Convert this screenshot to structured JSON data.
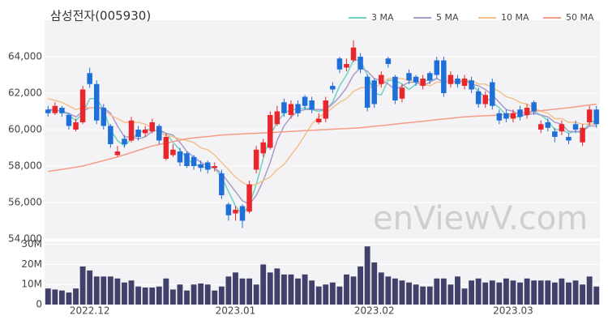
{
  "chart_data": [
    {
      "type": "candlestick",
      "title": "삼성전자(005930)",
      "watermark": "enViewV.com",
      "up_color": "#e8262b",
      "down_color": "#1f6fd8",
      "open": [
        61100,
        60900,
        61200,
        60800,
        60000,
        60400,
        63100,
        62500,
        61200,
        60200,
        58600,
        59500,
        59400,
        60000,
        59800,
        59900,
        60200,
        58400,
        58600,
        58800,
        58700,
        58500,
        58100,
        58200,
        57900,
        57600,
        55900,
        55400,
        55800,
        55500,
        57800,
        58700,
        59000,
        60300,
        61500,
        60800,
        61400,
        61800,
        61600,
        60400,
        60600,
        62400,
        63900,
        63400,
        63800,
        64000,
        62900,
        62700,
        62500,
        63900,
        62900,
        61700,
        63100,
        62900,
        62400,
        63100,
        63800,
        63800,
        62500,
        62800,
        62400,
        62700,
        62100,
        61400,
        62600,
        60900,
        60900,
        60600,
        61100,
        60800,
        61500,
        60000,
        60400,
        59900,
        59900,
        59600,
        60300,
        59300,
        60400,
        61100
      ],
      "high": [
        61300,
        61500,
        61300,
        60900,
        60600,
        62400,
        63400,
        62700,
        61400,
        60300,
        59100,
        59700,
        60700,
        60200,
        60200,
        60600,
        60300,
        59800,
        59200,
        59000,
        58800,
        58600,
        58300,
        58300,
        58200,
        57800,
        56000,
        55800,
        55900,
        57200,
        59100,
        59500,
        61000,
        61300,
        61700,
        61600,
        61600,
        61900,
        61800,
        60900,
        61800,
        62600,
        64000,
        63900,
        64900,
        64200,
        63000,
        62800,
        63200,
        64000,
        63000,
        62500,
        63300,
        63000,
        63000,
        63200,
        64000,
        64000,
        63200,
        63000,
        63000,
        62900,
        62300,
        62100,
        62800,
        61100,
        61100,
        61100,
        61300,
        61400,
        61600,
        60500,
        60600,
        60100,
        60500,
        59800,
        60500,
        60300,
        61300,
        61300
      ],
      "low": [
        60700,
        60800,
        60700,
        60000,
        59900,
        60300,
        62300,
        60300,
        60000,
        59000,
        58500,
        59000,
        59300,
        59400,
        59600,
        59800,
        59200,
        58300,
        58500,
        58000,
        57900,
        57800,
        57700,
        57600,
        57700,
        56200,
        55000,
        55000,
        54600,
        55400,
        57600,
        58500,
        58900,
        60200,
        60700,
        60600,
        60700,
        61100,
        60900,
        60300,
        60400,
        62000,
        63100,
        63200,
        63700,
        63100,
        61000,
        61200,
        62300,
        63400,
        61400,
        61500,
        62500,
        62400,
        62200,
        62500,
        62800,
        61800,
        62300,
        62300,
        62200,
        62000,
        61200,
        61200,
        61100,
        60300,
        60400,
        60400,
        60500,
        60600,
        60800,
        59800,
        59900,
        59300,
        59700,
        59200,
        59800,
        59100,
        60200,
        60100
      ],
      "close": [
        60900,
        61300,
        60900,
        60200,
        60400,
        62200,
        62500,
        60500,
        60200,
        59200,
        58800,
        59200,
        60500,
        59600,
        60000,
        60400,
        59400,
        59600,
        58900,
        58200,
        58000,
        58000,
        57900,
        57800,
        58000,
        56400,
        55300,
        55600,
        55000,
        57000,
        58900,
        59300,
        60800,
        61000,
        60900,
        61400,
        60900,
        61300,
        61100,
        60600,
        61600,
        62200,
        63300,
        63600,
        64500,
        63300,
        61200,
        61400,
        63000,
        63600,
        61600,
        62300,
        62700,
        62600,
        62800,
        62700,
        63000,
        62000,
        63000,
        62500,
        62800,
        62200,
        61400,
        61900,
        61300,
        60500,
        60600,
        60900,
        60700,
        61200,
        61000,
        60300,
        60100,
        59600,
        60300,
        59400,
        60000,
        60100,
        61100,
        60300
      ],
      "series": [
        {
          "name": "3 MA",
          "color": "#6fd1c1",
          "values": [
            61000,
            61100,
            61000,
            60800,
            60500,
            60900,
            61700,
            61700,
            61100,
            60000,
            59400,
            59100,
            59500,
            59800,
            60000,
            60000,
            59900,
            59800,
            59300,
            58900,
            58400,
            58100,
            58000,
            57900,
            57900,
            57400,
            56600,
            55800,
            55300,
            55900,
            57000,
            58400,
            59700,
            60400,
            60900,
            61100,
            61100,
            61200,
            61100,
            61000,
            61100,
            61500,
            62400,
            63000,
            63800,
            63800,
            63000,
            62000,
            61900,
            62700,
            62700,
            62500,
            62200,
            62500,
            62700,
            62700,
            62800,
            62600,
            62700,
            62500,
            62800,
            62500,
            62100,
            61800,
            61500,
            61200,
            60800,
            60700,
            60700,
            60900,
            61000,
            60800,
            60500,
            60000,
            60000,
            59800,
            59900,
            59800,
            60400,
            60500
          ]
        },
        {
          "name": "5 MA",
          "color": "#a99cca",
          "values": [
            61100,
            61100,
            61000,
            60900,
            60700,
            61000,
            61200,
            61200,
            61200,
            60900,
            60200,
            59600,
            59600,
            59500,
            59600,
            59900,
            60000,
            59800,
            59700,
            59300,
            58800,
            58500,
            58200,
            58000,
            57900,
            57600,
            57100,
            56600,
            56100,
            55900,
            56400,
            57200,
            58200,
            59400,
            60200,
            60700,
            61000,
            61100,
            61100,
            61100,
            61100,
            61400,
            61800,
            62300,
            63000,
            63400,
            63200,
            62800,
            62700,
            62500,
            62200,
            62400,
            62600,
            62600,
            62400,
            62600,
            62800,
            62600,
            62700,
            62600,
            62700,
            62500,
            62400,
            62200,
            61900,
            61500,
            61100,
            61000,
            60800,
            60800,
            60900,
            60800,
            60700,
            60400,
            60300,
            59900,
            59900,
            59900,
            60200,
            60200
          ]
        },
        {
          "name": "10 MA",
          "color": "#f2c18c",
          "values": [
            61700,
            61600,
            61500,
            61300,
            61100,
            61200,
            61200,
            61200,
            61100,
            60800,
            60600,
            60400,
            60400,
            60400,
            60300,
            60100,
            59800,
            59700,
            59600,
            59500,
            59400,
            59300,
            59000,
            58900,
            58600,
            58200,
            57800,
            57400,
            57100,
            56900,
            57000,
            57200,
            57400,
            57800,
            58100,
            58600,
            59100,
            59700,
            60300,
            60700,
            60900,
            61200,
            61500,
            61700,
            62100,
            62300,
            62300,
            62300,
            62500,
            62800,
            62800,
            62800,
            62700,
            62700,
            62500,
            62400,
            62600,
            62600,
            62700,
            62500,
            62700,
            62700,
            62500,
            62500,
            62300,
            62100,
            61800,
            61700,
            61500,
            61400,
            61200,
            61000,
            60900,
            60600,
            60600,
            60400,
            60400,
            60300,
            60300,
            60300
          ]
        },
        {
          "name": "50 MA",
          "color": "#f59c86",
          "values": [
            57700,
            57760,
            57820,
            57880,
            57940,
            58000,
            58100,
            58200,
            58300,
            58400,
            58500,
            58620,
            58740,
            58860,
            58980,
            59100,
            59180,
            59260,
            59340,
            59420,
            59500,
            59540,
            59580,
            59620,
            59660,
            59700,
            59720,
            59740,
            59760,
            59780,
            59800,
            59820,
            59840,
            59860,
            59880,
            59900,
            59920,
            59940,
            59960,
            59980,
            60000,
            60020,
            60040,
            60060,
            60080,
            60100,
            60140,
            60180,
            60220,
            60260,
            60300,
            60340,
            60380,
            60420,
            60460,
            60500,
            60540,
            60580,
            60620,
            60660,
            60700,
            60720,
            60740,
            60760,
            60780,
            60800,
            60840,
            60880,
            60920,
            60960,
            61000,
            61040,
            61080,
            61120,
            61160,
            61200,
            61250,
            61300,
            61350,
            61400
          ]
        }
      ],
      "legend": "top-right",
      "grid": true,
      "ylim": [
        54000,
        66000
      ],
      "yticks": [
        {
          "value": 54000,
          "label": "54,000"
        },
        {
          "value": 56000,
          "label": "56,000"
        },
        {
          "value": 58000,
          "label": "58,000"
        },
        {
          "value": 60000,
          "label": "60,000"
        },
        {
          "value": 62000,
          "label": "62,000"
        },
        {
          "value": 64000,
          "label": "64,000"
        }
      ]
    },
    {
      "type": "bar",
      "color": "#40406a",
      "grid": true,
      "categories": [
        null,
        null,
        null,
        null,
        null,
        null,
        "2022.12",
        null,
        null,
        null,
        null,
        null,
        null,
        null,
        null,
        null,
        null,
        null,
        null,
        null,
        null,
        null,
        null,
        null,
        null,
        null,
        null,
        "2023.01",
        null,
        null,
        null,
        null,
        null,
        null,
        null,
        null,
        null,
        null,
        null,
        null,
        null,
        null,
        null,
        null,
        null,
        null,
        null,
        "2023.02",
        null,
        null,
        null,
        null,
        null,
        null,
        null,
        null,
        null,
        null,
        null,
        null,
        null,
        null,
        null,
        null,
        null,
        null,
        null,
        "2023.03",
        null,
        null,
        null,
        null,
        null,
        null,
        null,
        null,
        null,
        null,
        null,
        null
      ],
      "values": [
        8000000,
        7500000,
        7000000,
        6000000,
        8000000,
        19000000,
        17000000,
        14000000,
        14000000,
        14000000,
        13000000,
        11000000,
        12000000,
        9000000,
        8500000,
        8500000,
        9000000,
        13000000,
        7500000,
        10000000,
        7000000,
        10000000,
        10500000,
        10000000,
        7000000,
        9000000,
        14000000,
        16000000,
        13000000,
        13000000,
        10000000,
        20000000,
        16000000,
        18000000,
        15000000,
        15000000,
        13000000,
        15000000,
        12000000,
        9000000,
        10000000,
        11000000,
        9000000,
        15000000,
        14000000,
        19000000,
        29000000,
        21000000,
        16000000,
        14000000,
        13000000,
        12000000,
        11000000,
        10000000,
        9000000,
        9000000,
        13000000,
        13000000,
        10000000,
        14000000,
        8000000,
        12000000,
        13000000,
        11000000,
        12000000,
        11000000,
        13000000,
        12000000,
        11000000,
        13000000,
        12000000,
        12000000,
        12000000,
        11000000,
        13000000,
        11000000,
        12000000,
        10000000,
        14000000,
        9000000
      ],
      "ylim": [
        0,
        31500000
      ],
      "yticks": [
        0,
        {
          "value": 10000000,
          "label": "10M"
        },
        {
          "value": 20000000,
          "label": "20M"
        },
        {
          "value": 30000000,
          "label": "30M"
        }
      ]
    }
  ]
}
